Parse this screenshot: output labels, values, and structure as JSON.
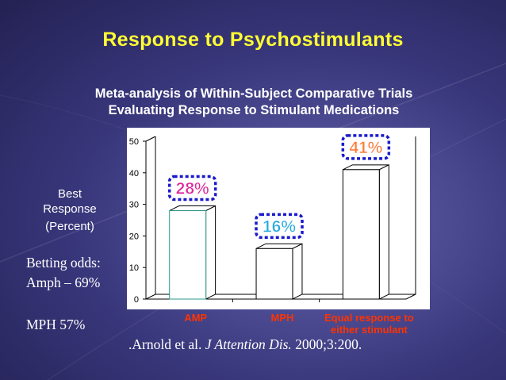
{
  "slide": {
    "title": "Response to Psychostimulants",
    "subtitle_line1": "Meta-analysis of Within-Subject Comparative Trials",
    "subtitle_line2": "Evaluating Response to Stimulant Medications",
    "ylabel_lines": [
      "Best",
      "Response",
      "(Percent)"
    ],
    "betting_odds_line1": "Betting odds:",
    "betting_odds_line2": "Amph – 69%",
    "betting_odds_line3": "MPH 57%",
    "citation_prefix": ".Arnold et al. ",
    "citation_journal": "J Attention Dis.",
    "citation_suffix": " 2000;3:200."
  },
  "colors": {
    "title": "#ffff33",
    "category_label": "#ff3300",
    "plot_background": "#ffffff",
    "label_amp": "#dd2299",
    "label_mph": "#22aadd",
    "label_equal": "#ff7733",
    "label_box_border": "#1a1acc"
  },
  "chart_data": {
    "type": "bar",
    "categories": [
      "AMP",
      "MPH",
      "Equal response to either stimulant"
    ],
    "category_label_lines": [
      [
        "AMP"
      ],
      [
        "MPH"
      ],
      [
        "Equal response to",
        "either stimulant"
      ]
    ],
    "values": [
      28,
      16,
      41
    ],
    "data_labels": [
      "28%",
      "16%",
      "41%"
    ],
    "ylabel": "Best Response (Percent)",
    "ylim": [
      0,
      50
    ],
    "yticks": [
      0,
      10,
      20,
      30,
      40,
      50
    ],
    "grid": false,
    "legend": "none",
    "style": "3d"
  }
}
